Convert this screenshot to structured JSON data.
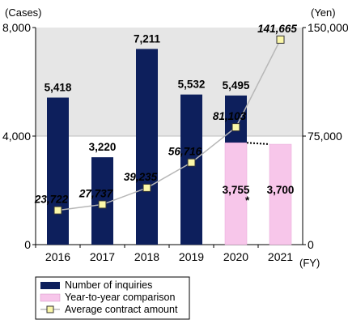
{
  "chart_data": {
    "type": "bar",
    "categories": [
      "2016",
      "2017",
      "2018",
      "2019",
      "2020",
      "2021"
    ],
    "x_unit": "(FY)",
    "left_axis": {
      "unit": "(Cases)",
      "ticks": [
        "0",
        "4,000",
        "8,000"
      ],
      "range": [
        0,
        8000
      ]
    },
    "right_axis": {
      "unit": "(Yen)",
      "ticks": [
        "0",
        "75,000",
        "150,000"
      ],
      "range": [
        0,
        150000
      ]
    },
    "series": [
      {
        "name": "Number of inquiries",
        "type": "bar",
        "color": "#0d1f5c",
        "values": [
          5418,
          3220,
          7211,
          5532,
          5495,
          null
        ],
        "labels": [
          "5,418",
          "3,220",
          "7,211",
          "5,532",
          "5,495",
          ""
        ]
      },
      {
        "name": "Year-to-year comparison",
        "type": "bar",
        "color": "#f7c6ea",
        "values": [
          null,
          null,
          null,
          null,
          3755,
          3700
        ],
        "labels": [
          "",
          "",
          "",
          "",
          "3,755",
          "3,700"
        ],
        "annotation": "*"
      },
      {
        "name": "Average contract amount",
        "type": "line",
        "axis": "right",
        "color": "#b7b7b7",
        "marker_color": "#fbf7a8",
        "values": [
          23722,
          27737,
          39235,
          56716,
          81103,
          141665
        ],
        "labels": [
          "23,722",
          "27,737",
          "39,235",
          "56,716",
          "81,103",
          "141,665"
        ]
      }
    ],
    "shaded_band": {
      "from": 4000,
      "to": 8000,
      "color": "#e6e6e6"
    }
  }
}
